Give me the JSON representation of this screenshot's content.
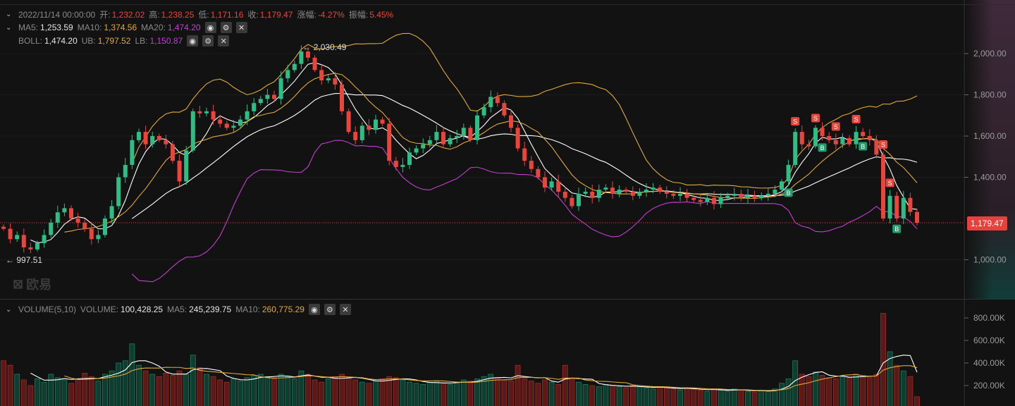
{
  "header": {
    "date": "2022/11/14 00:00:00",
    "open_label": "开:",
    "open": "1,232.02",
    "high_label": "高:",
    "high": "1,238.25",
    "low_label": "低:",
    "low": "1,171.16",
    "close_label": "收:",
    "close": "1,179.47",
    "change_label": "涨幅:",
    "change": "-4.27%",
    "amplitude_label": "振幅:",
    "amplitude": "5.45%"
  },
  "ma": {
    "ma5_label": "MA5:",
    "ma5": "1,253.59",
    "ma10_label": "MA10:",
    "ma10": "1,374.56",
    "ma20_label": "MA20:",
    "ma20": "1,474.20"
  },
  "boll": {
    "label": "BOLL:",
    "value": "1,474.20",
    "ub_label": "UB:",
    "ub": "1,797.52",
    "lb_label": "LB:",
    "lb": "1,150.87"
  },
  "volume": {
    "title": "VOLUME(5,10)",
    "vol_label": "VOLUME:",
    "vol": "100,428.25",
    "ma5_label": "MA5:",
    "ma5": "245,239.75",
    "ma10_label": "MA10:",
    "ma10": "260,775.29"
  },
  "icons": {
    "eye": "eye-icon",
    "gear": "gear-icon",
    "close": "close-icon",
    "chevron": "chevron-down-icon"
  },
  "price_tag": "1,179.47",
  "max_annotation": "← 2,030.49",
  "min_annotation": "← 997.51",
  "logo_text": "欧易",
  "colors": {
    "up": "#2ebd85",
    "down": "#e8453c",
    "ma5": "#ffffff",
    "ma10": "#e0a93a",
    "ma20": "#c23fd0",
    "background": "#121212"
  },
  "chart_data": {
    "type": "candlestick",
    "price_axis": {
      "ticks": [
        "2,000.00",
        "1,800.00",
        "1,600.00",
        "1,400.00",
        "1,000.00"
      ],
      "tick_values": [
        2000,
        1800,
        1600,
        1400,
        1000
      ]
    },
    "volume_axis": {
      "ticks": [
        "800.00K",
        "600.00K",
        "400.00K",
        "200.00K"
      ],
      "tick_values": [
        800000,
        600000,
        400000,
        200000
      ]
    },
    "first_open": 1160,
    "closes": [
      1150,
      1100,
      1120,
      1060,
      1050,
      1080,
      1120,
      1180,
      1230,
      1250,
      1200,
      1180,
      1150,
      1100,
      1120,
      1200,
      1260,
      1400,
      1460,
      1580,
      1620,
      1560,
      1600,
      1580,
      1560,
      1480,
      1380,
      1530,
      1720,
      1710,
      1720,
      1680,
      1660,
      1640,
      1650,
      1680,
      1720,
      1760,
      1780,
      1800,
      1780,
      1880,
      1920,
      1950,
      2010,
      1980,
      1920,
      1870,
      1880,
      1850,
      1720,
      1620,
      1580,
      1650,
      1630,
      1680,
      1660,
      1480,
      1450,
      1460,
      1520,
      1540,
      1560,
      1580,
      1620,
      1560,
      1590,
      1600,
      1640,
      1580,
      1700,
      1740,
      1790,
      1760,
      1700,
      1640,
      1540,
      1480,
      1440,
      1400,
      1350,
      1380,
      1330,
      1300,
      1260,
      1320,
      1330,
      1300,
      1340,
      1350,
      1320,
      1340,
      1330,
      1310,
      1330,
      1340,
      1350,
      1330,
      1320,
      1310,
      1320,
      1300,
      1290,
      1280,
      1300,
      1270,
      1300,
      1310,
      1320,
      1300,
      1310,
      1300,
      1310,
      1320,
      1340,
      1380,
      1460,
      1620,
      1560,
      1550,
      1640,
      1600,
      1580,
      1560,
      1590,
      1560,
      1620,
      1600,
      1580,
      1510,
      1200,
      1310,
      1200,
      1300,
      1232.02,
      1179.47
    ],
    "volumes": [
      420000,
      380000,
      300000,
      250000,
      200000,
      260000,
      230000,
      300000,
      270000,
      250000,
      220000,
      260000,
      310000,
      280000,
      240000,
      300000,
      330000,
      400000,
      420000,
      570000,
      380000,
      330000,
      300000,
      280000,
      310000,
      290000,
      330000,
      300000,
      470000,
      360000,
      300000,
      280000,
      250000,
      230000,
      260000,
      240000,
      270000,
      290000,
      300000,
      280000,
      260000,
      300000,
      280000,
      260000,
      330000,
      300000,
      250000,
      230000,
      260000,
      280000,
      300000,
      270000,
      250000,
      230000,
      220000,
      240000,
      260000,
      280000,
      270000,
      250000,
      230000,
      220000,
      210000,
      230000,
      240000,
      220000,
      210000,
      230000,
      250000,
      240000,
      260000,
      280000,
      300000,
      270000,
      250000,
      240000,
      380000,
      260000,
      240000,
      220000,
      250000,
      230000,
      210000,
      380000,
      260000,
      230000,
      210000,
      200000,
      190000,
      210000,
      200000,
      190000,
      180000,
      200000,
      190000,
      180000,
      170000,
      190000,
      180000,
      170000,
      160000,
      180000,
      170000,
      160000,
      150000,
      170000,
      160000,
      150000,
      170000,
      160000,
      150000,
      140000,
      160000,
      150000,
      170000,
      220000,
      260000,
      420000,
      300000,
      280000,
      320000,
      290000,
      270000,
      260000,
      280000,
      270000,
      300000,
      290000,
      270000,
      300000,
      840000,
      500000,
      380000,
      330000,
      280000,
      100428
    ],
    "markers": [
      {
        "i": 117,
        "type": "S"
      },
      {
        "i": 120,
        "type": "S"
      },
      {
        "i": 123,
        "type": "S"
      },
      {
        "i": 126,
        "type": "S"
      },
      {
        "i": 130,
        "type": "S"
      },
      {
        "i": 131,
        "type": "S"
      },
      {
        "i": 116,
        "type": "B"
      },
      {
        "i": 121,
        "type": "B"
      },
      {
        "i": 127,
        "type": "B"
      },
      {
        "i": 132,
        "type": "B"
      }
    ],
    "current_price": 1179.47,
    "max_price": 2030.49,
    "min_price": 997.51
  }
}
